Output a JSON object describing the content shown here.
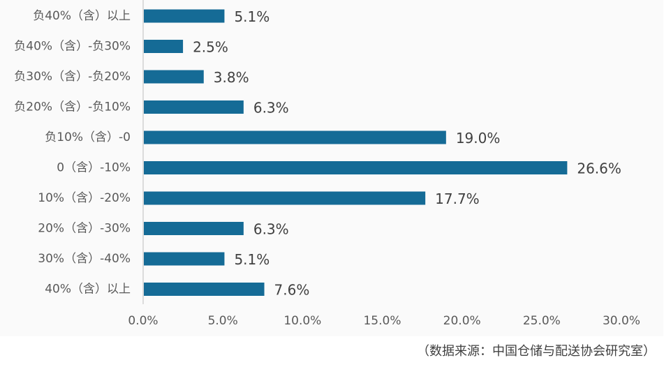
{
  "chart_data": {
    "type": "bar",
    "orientation": "horizontal",
    "categories": [
      "负40%（含）以上",
      "负40%（含）-负30%",
      "负30%（含）-负20%",
      "负20%（含）-负10%",
      "负10%（含）-0",
      "0（含）-10%",
      "10%（含）-20%",
      "20%（含）-30%",
      "30%（含）-40%",
      "40%（含）以上"
    ],
    "values": [
      5.1,
      2.5,
      3.8,
      6.3,
      19.0,
      26.6,
      17.7,
      6.3,
      5.1,
      7.6
    ],
    "data_labels": [
      "5.1%",
      "2.5%",
      "3.8%",
      "6.3%",
      "19.0%",
      "26.6%",
      "17.7%",
      "6.3%",
      "5.1%",
      "7.6%"
    ],
    "x_ticks": [
      "0.0%",
      "5.0%",
      "10.0%",
      "15.0%",
      "20.0%",
      "25.0%",
      "30.0%"
    ],
    "xlim": [
      0,
      30
    ],
    "grid": false,
    "bar_color": "#156b96",
    "background_color": "#fafafa"
  },
  "source_note": "（数据来源：中国仓储与配送协会研究室）"
}
